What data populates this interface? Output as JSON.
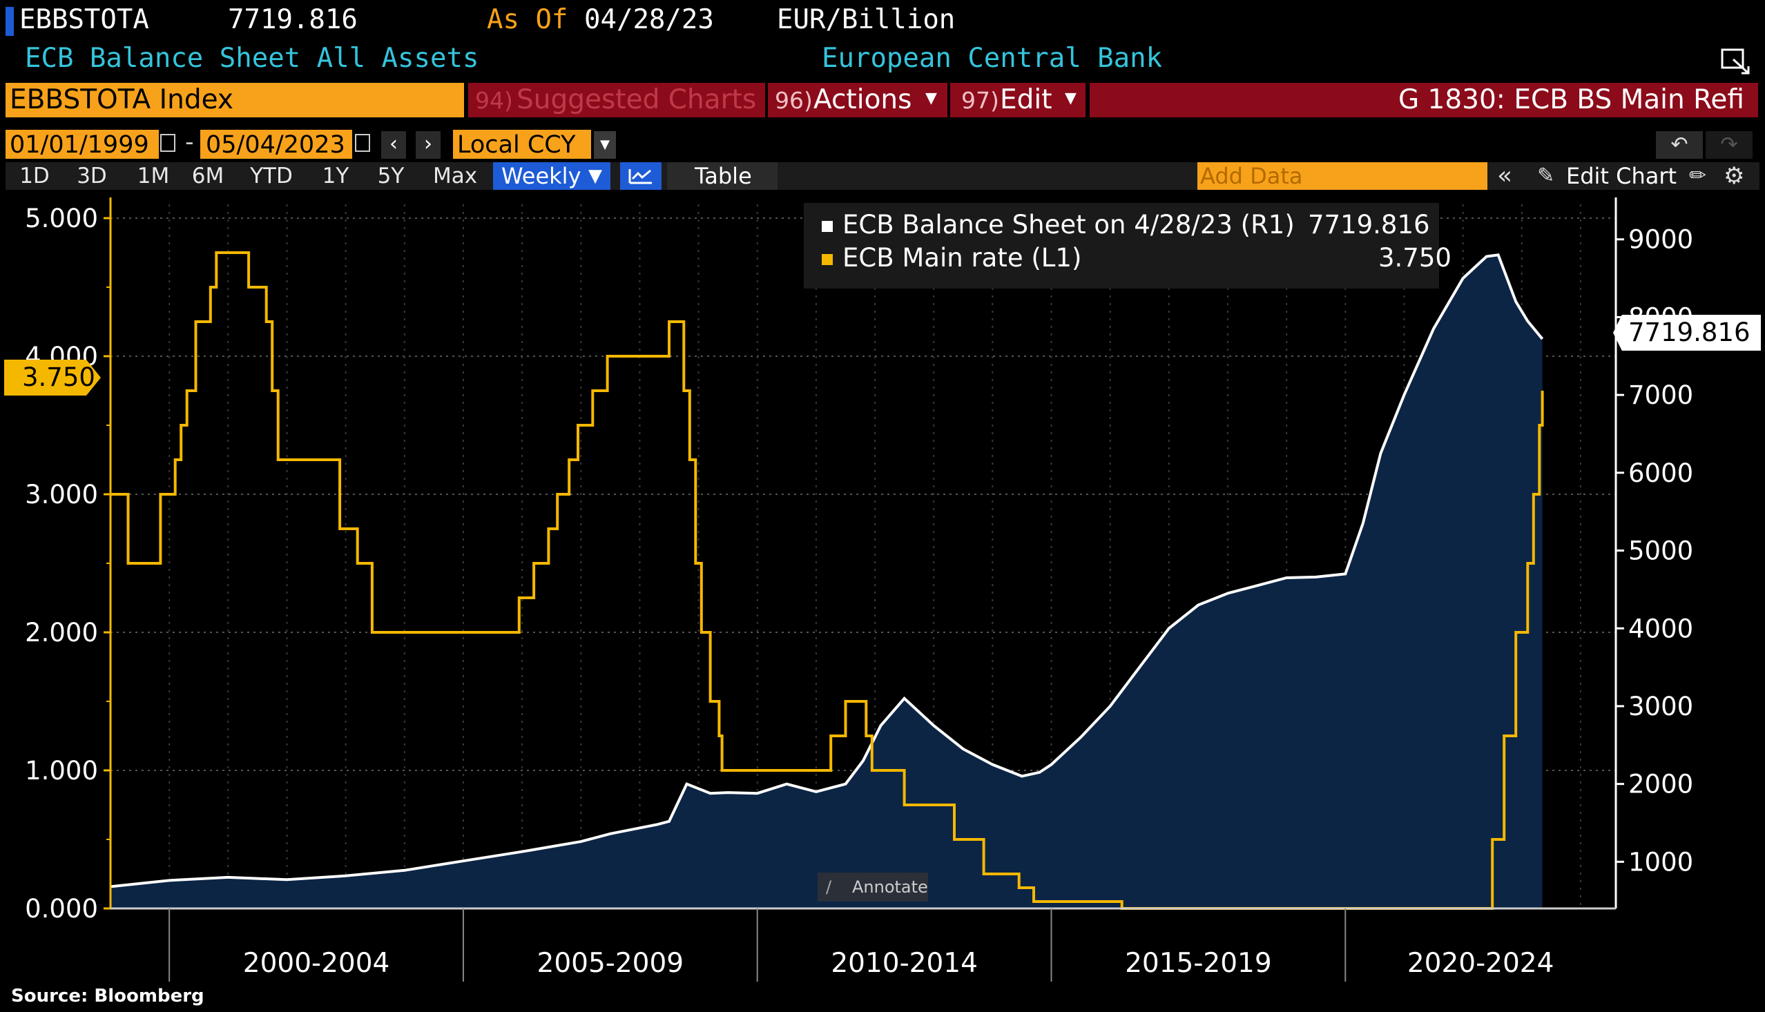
{
  "header": {
    "ticker": "EBBSTOTA",
    "last_value": "7719.816",
    "as_of_label": "As Of",
    "as_of_date": "04/28/23",
    "units": "EUR/Billion",
    "description": "ECB Balance Sheet All Assets",
    "source_name": "European Central Bank"
  },
  "command_bar": {
    "security": "EBBSTOTA Index",
    "suggested_num": "94)",
    "suggested": "Suggested Charts",
    "actions_num": "96)",
    "actions": "Actions",
    "edit_num": "97)",
    "edit": "Edit",
    "chart_title": "G 1830: ECB BS Main Refi"
  },
  "date_range": {
    "start": "01/01/1999",
    "separator": "-",
    "end": "05/04/2023",
    "currency": "Local CCY"
  },
  "periods": [
    "1D",
    "3D",
    "1M",
    "6M",
    "YTD",
    "1Y",
    "5Y",
    "Max"
  ],
  "frequency": "Weekly",
  "table_label": "Table",
  "add_data_placeholder": "Add Data",
  "edit_chart_label": "Edit Chart",
  "annotate_label": "Annotate",
  "source_note": "Source: Bloomberg",
  "colors": {
    "rate_line": "#f5b800",
    "balance_line": "#ffffff",
    "area_fill": "#0d2545",
    "command_red": "#8b0b1a",
    "input_orange": "#f7a21a",
    "period_selected": "#1e5bd6"
  },
  "legend": [
    {
      "label": "ECB Balance Sheet on 4/28/23 (R1)",
      "value": "7719.816",
      "color": "#ffffff"
    },
    {
      "label": "ECB Main rate (L1)",
      "value": "3.750",
      "color": "#f5b800"
    }
  ],
  "chart_data": {
    "type": "line",
    "x_range": [
      1999.0,
      2024.6
    ],
    "x_period_labels": [
      {
        "label": "2000-2004",
        "start": 2000,
        "end": 2005
      },
      {
        "label": "2005-2009",
        "start": 2005,
        "end": 2010
      },
      {
        "label": "2010-2014",
        "start": 2010,
        "end": 2015
      },
      {
        "label": "2015-2019",
        "start": 2015,
        "end": 2020
      },
      {
        "label": "2020-2024",
        "start": 2020,
        "end": 2024.6
      }
    ],
    "left_axis": {
      "ylim": [
        0,
        5.1
      ],
      "ticks": [
        "0.000",
        "1.000",
        "2.000",
        "3.000",
        "4.000",
        "5.000"
      ],
      "last_value_label": "3.750"
    },
    "right_axis": {
      "ylim": [
        400,
        9450
      ],
      "ticks": [
        "1000",
        "2000",
        "3000",
        "4000",
        "5000",
        "6000",
        "7000",
        "8000",
        "9000"
      ],
      "last_value_label": "7719.816"
    },
    "grid": true,
    "series": [
      {
        "name": "ECB Main rate (L1)",
        "axis": "left",
        "style": "step",
        "points": [
          [
            1999.0,
            3.0
          ],
          [
            1999.3,
            2.5
          ],
          [
            1999.85,
            3.0
          ],
          [
            2000.1,
            3.25
          ],
          [
            2000.2,
            3.5
          ],
          [
            2000.3,
            3.75
          ],
          [
            2000.45,
            4.25
          ],
          [
            2000.7,
            4.5
          ],
          [
            2000.8,
            4.75
          ],
          [
            2001.35,
            4.5
          ],
          [
            2001.65,
            4.25
          ],
          [
            2001.75,
            3.75
          ],
          [
            2001.85,
            3.25
          ],
          [
            2002.9,
            2.75
          ],
          [
            2003.2,
            2.5
          ],
          [
            2003.45,
            2.0
          ],
          [
            2005.95,
            2.25
          ],
          [
            2006.2,
            2.5
          ],
          [
            2006.45,
            2.75
          ],
          [
            2006.6,
            3.0
          ],
          [
            2006.8,
            3.25
          ],
          [
            2006.95,
            3.5
          ],
          [
            2007.2,
            3.75
          ],
          [
            2007.45,
            4.0
          ],
          [
            2008.5,
            4.25
          ],
          [
            2008.75,
            3.75
          ],
          [
            2008.85,
            3.25
          ],
          [
            2008.95,
            2.5
          ],
          [
            2009.05,
            2.0
          ],
          [
            2009.2,
            1.5
          ],
          [
            2009.35,
            1.25
          ],
          [
            2009.4,
            1.0
          ],
          [
            2011.25,
            1.25
          ],
          [
            2011.5,
            1.5
          ],
          [
            2011.85,
            1.25
          ],
          [
            2011.95,
            1.0
          ],
          [
            2012.5,
            0.75
          ],
          [
            2013.35,
            0.5
          ],
          [
            2013.85,
            0.25
          ],
          [
            2014.45,
            0.15
          ],
          [
            2014.7,
            0.05
          ],
          [
            2016.2,
            0.0
          ],
          [
            2022.5,
            0.5
          ],
          [
            2022.7,
            1.25
          ],
          [
            2022.9,
            2.0
          ],
          [
            2023.1,
            2.5
          ],
          [
            2023.2,
            3.0
          ],
          [
            2023.3,
            3.5
          ],
          [
            2023.35,
            3.75
          ]
        ]
      },
      {
        "name": "ECB Balance Sheet (R1)",
        "axis": "right",
        "style": "area",
        "points": [
          [
            1999.0,
            680
          ],
          [
            2000.0,
            760
          ],
          [
            2001.0,
            800
          ],
          [
            2002.0,
            770
          ],
          [
            2003.0,
            820
          ],
          [
            2004.0,
            890
          ],
          [
            2005.0,
            1010
          ],
          [
            2006.0,
            1130
          ],
          [
            2007.0,
            1260
          ],
          [
            2007.5,
            1360
          ],
          [
            2008.3,
            1480
          ],
          [
            2008.5,
            1520
          ],
          [
            2008.8,
            2000
          ],
          [
            2009.2,
            1880
          ],
          [
            2009.5,
            1890
          ],
          [
            2010.0,
            1880
          ],
          [
            2010.5,
            2000
          ],
          [
            2011.0,
            1900
          ],
          [
            2011.5,
            2000
          ],
          [
            2011.8,
            2300
          ],
          [
            2012.1,
            2750
          ],
          [
            2012.5,
            3100
          ],
          [
            2013.0,
            2750
          ],
          [
            2013.5,
            2450
          ],
          [
            2014.0,
            2250
          ],
          [
            2014.5,
            2100
          ],
          [
            2014.8,
            2150
          ],
          [
            2015.0,
            2250
          ],
          [
            2015.5,
            2600
          ],
          [
            2016.0,
            3000
          ],
          [
            2016.5,
            3500
          ],
          [
            2017.0,
            4000
          ],
          [
            2017.5,
            4300
          ],
          [
            2018.0,
            4450
          ],
          [
            2018.5,
            4550
          ],
          [
            2019.0,
            4650
          ],
          [
            2019.5,
            4660
          ],
          [
            2020.0,
            4700
          ],
          [
            2020.3,
            5350
          ],
          [
            2020.6,
            6250
          ],
          [
            2021.0,
            7000
          ],
          [
            2021.5,
            7850
          ],
          [
            2022.0,
            8500
          ],
          [
            2022.4,
            8780
          ],
          [
            2022.6,
            8800
          ],
          [
            2022.9,
            8200
          ],
          [
            2023.1,
            7950
          ],
          [
            2023.35,
            7720
          ]
        ]
      }
    ]
  }
}
